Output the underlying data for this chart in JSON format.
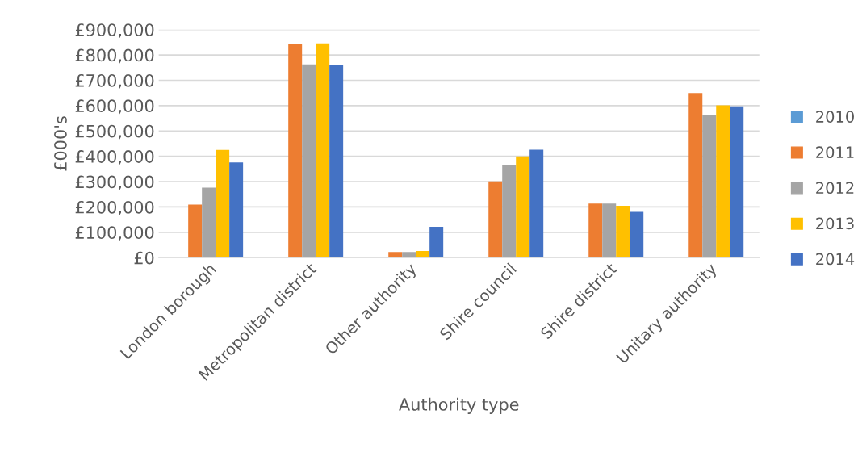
{
  "chart_data": {
    "type": "bar",
    "xlabel": "Authority type",
    "ylabel": "£000's",
    "categories": [
      "London borough",
      "Metropolitan district",
      "Other authority",
      "Shire council",
      "Shire district",
      "Unitary authority"
    ],
    "series": [
      {
        "name": "2010",
        "color": "#5b9bd5",
        "values": [
          null,
          null,
          null,
          null,
          null,
          null
        ]
      },
      {
        "name": "2011",
        "color": "#ed7d31",
        "values": [
          209000,
          843000,
          22000,
          301000,
          213000,
          650000
        ]
      },
      {
        "name": "2012",
        "color": "#a5a5a5",
        "values": [
          276000,
          763000,
          22000,
          364000,
          213000,
          564000
        ]
      },
      {
        "name": "2013",
        "color": "#ffc000",
        "values": [
          425000,
          846000,
          26000,
          400000,
          205000,
          601000
        ]
      },
      {
        "name": "2014",
        "color": "#4472c4",
        "values": [
          376000,
          759000,
          122000,
          426000,
          181000,
          597000
        ]
      }
    ],
    "ylim": [
      0,
      900000
    ],
    "yticks": [
      {
        "value": 0,
        "label": "£0"
      },
      {
        "value": 100000,
        "label": "£100,000"
      },
      {
        "value": 200000,
        "label": "£200,000"
      },
      {
        "value": 300000,
        "label": "£300,000"
      },
      {
        "value": 400000,
        "label": "£400,000"
      },
      {
        "value": 500000,
        "label": "£500,000"
      },
      {
        "value": 600000,
        "label": "£600,000"
      },
      {
        "value": 700000,
        "label": "£700,000"
      },
      {
        "value": 800000,
        "label": "£800,000"
      },
      {
        "value": 900000,
        "label": "£900,000"
      }
    ],
    "grid": "y",
    "legend": "right"
  }
}
